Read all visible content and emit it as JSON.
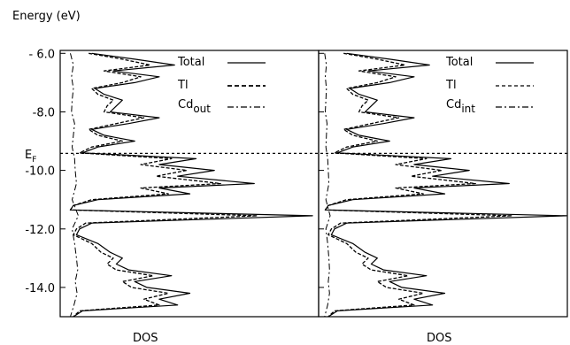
{
  "chart_data": [
    {
      "type": "line",
      "orientation": "horizontal-density",
      "ylabel": "Energy (eV)",
      "xlabel": "DOS",
      "ylim": [
        -15.0,
        -5.9
      ],
      "yticks": [
        "- 6.0",
        "-8.0",
        "-10.0",
        "-12.0",
        "-14.0"
      ],
      "ytick_values": [
        -6.0,
        -8.0,
        -10.0,
        -12.0,
        -14.0
      ],
      "fermi_label": "E",
      "fermi_sub": "F",
      "fermi_level": -9.42,
      "legend_placement": "top-right",
      "series": [
        {
          "name": "Total",
          "style": "solid",
          "points": [
            [
              -6.0,
              0.08
            ],
            [
              -6.2,
              0.22
            ],
            [
              -6.4,
              0.35
            ],
            [
              -6.6,
              0.15
            ],
            [
              -6.8,
              0.3
            ],
            [
              -7.0,
              0.22
            ],
            [
              -7.2,
              0.09
            ],
            [
              -7.4,
              0.12
            ],
            [
              -7.6,
              0.18
            ],
            [
              -7.8,
              0.16
            ],
            [
              -8.0,
              0.14
            ],
            [
              -8.2,
              0.3
            ],
            [
              -8.4,
              0.2
            ],
            [
              -8.6,
              0.08
            ],
            [
              -8.8,
              0.12
            ],
            [
              -9.0,
              0.22
            ],
            [
              -9.2,
              0.1
            ],
            [
              -9.4,
              0.05
            ],
            [
              -9.6,
              0.42
            ],
            [
              -9.8,
              0.3
            ],
            [
              -10.0,
              0.48
            ],
            [
              -10.2,
              0.36
            ],
            [
              -10.45,
              0.61
            ],
            [
              -10.6,
              0.3
            ],
            [
              -10.8,
              0.4
            ],
            [
              -11.0,
              0.1
            ],
            [
              -11.2,
              0.02
            ],
            [
              -11.35,
              0.01
            ],
            [
              -11.55,
              0.8
            ],
            [
              -11.8,
              0.08
            ],
            [
              -12.0,
              0.04
            ],
            [
              -12.2,
              0.03
            ],
            [
              -12.5,
              0.1
            ],
            [
              -12.8,
              0.14
            ],
            [
              -13.0,
              0.18
            ],
            [
              -13.2,
              0.16
            ],
            [
              -13.4,
              0.2
            ],
            [
              -13.6,
              0.34
            ],
            [
              -13.8,
              0.22
            ],
            [
              -14.0,
              0.26
            ],
            [
              -14.2,
              0.4
            ],
            [
              -14.4,
              0.3
            ],
            [
              -14.6,
              0.36
            ],
            [
              -14.8,
              0.05
            ],
            [
              -15.0,
              0.02
            ]
          ]
        },
        {
          "name": "Tl",
          "style": "dashed",
          "points": [
            [
              -6.0,
              0.07
            ],
            [
              -6.2,
              0.18
            ],
            [
              -6.4,
              0.27
            ],
            [
              -6.6,
              0.12
            ],
            [
              -6.8,
              0.24
            ],
            [
              -7.0,
              0.18
            ],
            [
              -7.2,
              0.08
            ],
            [
              -7.4,
              0.1
            ],
            [
              -7.6,
              0.15
            ],
            [
              -7.8,
              0.13
            ],
            [
              -8.0,
              0.12
            ],
            [
              -8.2,
              0.25
            ],
            [
              -8.4,
              0.16
            ],
            [
              -8.6,
              0.07
            ],
            [
              -8.8,
              0.1
            ],
            [
              -9.0,
              0.18
            ],
            [
              -9.2,
              0.08
            ],
            [
              -9.4,
              0.04
            ],
            [
              -9.6,
              0.34
            ],
            [
              -9.8,
              0.24
            ],
            [
              -10.0,
              0.39
            ],
            [
              -10.2,
              0.29
            ],
            [
              -10.45,
              0.5
            ],
            [
              -10.6,
              0.24
            ],
            [
              -10.8,
              0.33
            ],
            [
              -11.0,
              0.08
            ],
            [
              -11.2,
              0.02
            ],
            [
              -11.35,
              0.01
            ],
            [
              -11.55,
              0.62
            ],
            [
              -11.8,
              0.06
            ],
            [
              -12.0,
              0.03
            ],
            [
              -12.2,
              0.02
            ],
            [
              -12.5,
              0.08
            ],
            [
              -12.8,
              0.11
            ],
            [
              -13.0,
              0.15
            ],
            [
              -13.2,
              0.13
            ],
            [
              -13.4,
              0.16
            ],
            [
              -13.6,
              0.28
            ],
            [
              -13.8,
              0.18
            ],
            [
              -14.0,
              0.21
            ],
            [
              -14.2,
              0.33
            ],
            [
              -14.4,
              0.25
            ],
            [
              -14.6,
              0.3
            ],
            [
              -14.8,
              0.04
            ],
            [
              -15.0,
              0.02
            ]
          ]
        },
        {
          "name": "Cd_out",
          "label_main": "Cd",
          "label_sub": "out",
          "style": "dashdot",
          "points": [
            [
              -6.0,
              0.01
            ],
            [
              -6.4,
              0.02
            ],
            [
              -6.8,
              0.014
            ],
            [
              -7.2,
              0.02
            ],
            [
              -7.6,
              0.016
            ],
            [
              -8.0,
              0.014
            ],
            [
              -8.4,
              0.024
            ],
            [
              -8.8,
              0.02
            ],
            [
              -9.2,
              0.016
            ],
            [
              -9.6,
              0.024
            ],
            [
              -10.0,
              0.026
            ],
            [
              -10.45,
              0.03
            ],
            [
              -11.0,
              0.016
            ],
            [
              -11.55,
              0.036
            ],
            [
              -12.0,
              0.016
            ],
            [
              -12.5,
              0.024
            ],
            [
              -13.0,
              0.03
            ],
            [
              -13.4,
              0.034
            ],
            [
              -13.8,
              0.026
            ],
            [
              -14.2,
              0.032
            ],
            [
              -14.6,
              0.022
            ],
            [
              -15.0,
              0.01
            ]
          ]
        }
      ]
    },
    {
      "type": "line",
      "orientation": "horizontal-density",
      "xlabel": "DOS",
      "ylim": [
        -15.0,
        -5.9
      ],
      "fermi_level": -9.42,
      "legend_placement": "top-right",
      "series": [
        {
          "name": "Total",
          "style": "solid",
          "points": [
            [
              -6.0,
              0.08
            ],
            [
              -6.2,
              0.22
            ],
            [
              -6.4,
              0.35
            ],
            [
              -6.6,
              0.15
            ],
            [
              -6.8,
              0.3
            ],
            [
              -7.0,
              0.22
            ],
            [
              -7.2,
              0.09
            ],
            [
              -7.4,
              0.12
            ],
            [
              -7.6,
              0.18
            ],
            [
              -7.8,
              0.16
            ],
            [
              -8.0,
              0.14
            ],
            [
              -8.2,
              0.3
            ],
            [
              -8.4,
              0.2
            ],
            [
              -8.6,
              0.08
            ],
            [
              -8.8,
              0.12
            ],
            [
              -9.0,
              0.22
            ],
            [
              -9.2,
              0.1
            ],
            [
              -9.4,
              0.05
            ],
            [
              -9.6,
              0.42
            ],
            [
              -9.8,
              0.3
            ],
            [
              -10.0,
              0.48
            ],
            [
              -10.2,
              0.36
            ],
            [
              -10.45,
              0.61
            ],
            [
              -10.6,
              0.3
            ],
            [
              -10.8,
              0.4
            ],
            [
              -11.0,
              0.1
            ],
            [
              -11.2,
              0.02
            ],
            [
              -11.35,
              0.01
            ],
            [
              -11.55,
              0.8
            ],
            [
              -11.8,
              0.08
            ],
            [
              -12.0,
              0.04
            ],
            [
              -12.2,
              0.03
            ],
            [
              -12.5,
              0.1
            ],
            [
              -12.8,
              0.14
            ],
            [
              -13.0,
              0.18
            ],
            [
              -13.2,
              0.16
            ],
            [
              -13.4,
              0.2
            ],
            [
              -13.6,
              0.34
            ],
            [
              -13.8,
              0.22
            ],
            [
              -14.0,
              0.26
            ],
            [
              -14.2,
              0.4
            ],
            [
              -14.4,
              0.3
            ],
            [
              -14.6,
              0.36
            ],
            [
              -14.8,
              0.05
            ],
            [
              -15.0,
              0.02
            ]
          ]
        },
        {
          "name": "Tl",
          "style": "dashed",
          "points": [
            [
              -6.0,
              0.07
            ],
            [
              -6.2,
              0.18
            ],
            [
              -6.4,
              0.27
            ],
            [
              -6.6,
              0.12
            ],
            [
              -6.8,
              0.24
            ],
            [
              -7.0,
              0.18
            ],
            [
              -7.2,
              0.08
            ],
            [
              -7.4,
              0.1
            ],
            [
              -7.6,
              0.15
            ],
            [
              -7.8,
              0.13
            ],
            [
              -8.0,
              0.12
            ],
            [
              -8.2,
              0.25
            ],
            [
              -8.4,
              0.16
            ],
            [
              -8.6,
              0.07
            ],
            [
              -8.8,
              0.1
            ],
            [
              -9.0,
              0.18
            ],
            [
              -9.2,
              0.08
            ],
            [
              -9.4,
              0.04
            ],
            [
              -9.6,
              0.34
            ],
            [
              -9.8,
              0.24
            ],
            [
              -10.0,
              0.39
            ],
            [
              -10.2,
              0.29
            ],
            [
              -10.45,
              0.5
            ],
            [
              -10.6,
              0.24
            ],
            [
              -10.8,
              0.33
            ],
            [
              -11.0,
              0.08
            ],
            [
              -11.2,
              0.02
            ],
            [
              -11.35,
              0.01
            ],
            [
              -11.55,
              0.62
            ],
            [
              -11.8,
              0.06
            ],
            [
              -12.0,
              0.03
            ],
            [
              -12.2,
              0.02
            ],
            [
              -12.5,
              0.08
            ],
            [
              -12.8,
              0.11
            ],
            [
              -13.0,
              0.15
            ],
            [
              -13.2,
              0.13
            ],
            [
              -13.4,
              0.16
            ],
            [
              -13.6,
              0.28
            ],
            [
              -13.8,
              0.18
            ],
            [
              -14.0,
              0.21
            ],
            [
              -14.2,
              0.33
            ],
            [
              -14.4,
              0.25
            ],
            [
              -14.6,
              0.3
            ],
            [
              -14.8,
              0.04
            ],
            [
              -15.0,
              0.02
            ]
          ]
        },
        {
          "name": "Cd_int",
          "label_main": "Cd",
          "label_sub": "int",
          "style": "dashdot",
          "points": [
            [
              -6.0,
              0.008
            ],
            [
              -6.4,
              0.014
            ],
            [
              -6.8,
              0.01
            ],
            [
              -7.2,
              0.014
            ],
            [
              -7.6,
              0.012
            ],
            [
              -8.0,
              0.01
            ],
            [
              -8.4,
              0.016
            ],
            [
              -8.8,
              0.014
            ],
            [
              -9.2,
              0.012
            ],
            [
              -9.6,
              0.018
            ],
            [
              -10.0,
              0.02
            ],
            [
              -10.45,
              0.022
            ],
            [
              -11.0,
              0.012
            ],
            [
              -11.55,
              0.026
            ],
            [
              -12.0,
              0.012
            ],
            [
              -12.5,
              0.018
            ],
            [
              -13.0,
              0.022
            ],
            [
              -13.4,
              0.024
            ],
            [
              -13.8,
              0.02
            ],
            [
              -14.2,
              0.024
            ],
            [
              -14.6,
              0.018
            ],
            [
              -15.0,
              0.008
            ]
          ]
        }
      ]
    }
  ]
}
